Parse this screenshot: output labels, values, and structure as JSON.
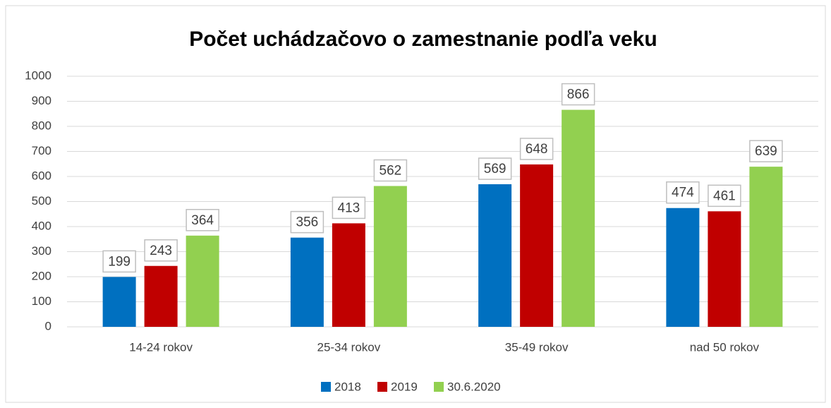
{
  "chart_data": {
    "type": "bar",
    "title": "Počet uchádzačovo o zamestnanie podľa veku",
    "categories": [
      "14-24 rokov",
      "25-34 rokov",
      "35-49 rokov",
      "nad 50 rokov"
    ],
    "series": [
      {
        "name": "2018",
        "color": "#0070c0",
        "values": [
          199,
          356,
          569,
          474
        ]
      },
      {
        "name": "2019",
        "color": "#c00000",
        "values": [
          243,
          413,
          648,
          461
        ]
      },
      {
        "name": "30.6.2020",
        "color": "#92d050",
        "values": [
          364,
          562,
          866,
          639
        ]
      }
    ],
    "ylim": [
      0,
      1000
    ],
    "yticks": [
      0,
      100,
      200,
      300,
      400,
      500,
      600,
      700,
      800,
      900,
      1000
    ],
    "grid": true,
    "legend": "bottom"
  }
}
